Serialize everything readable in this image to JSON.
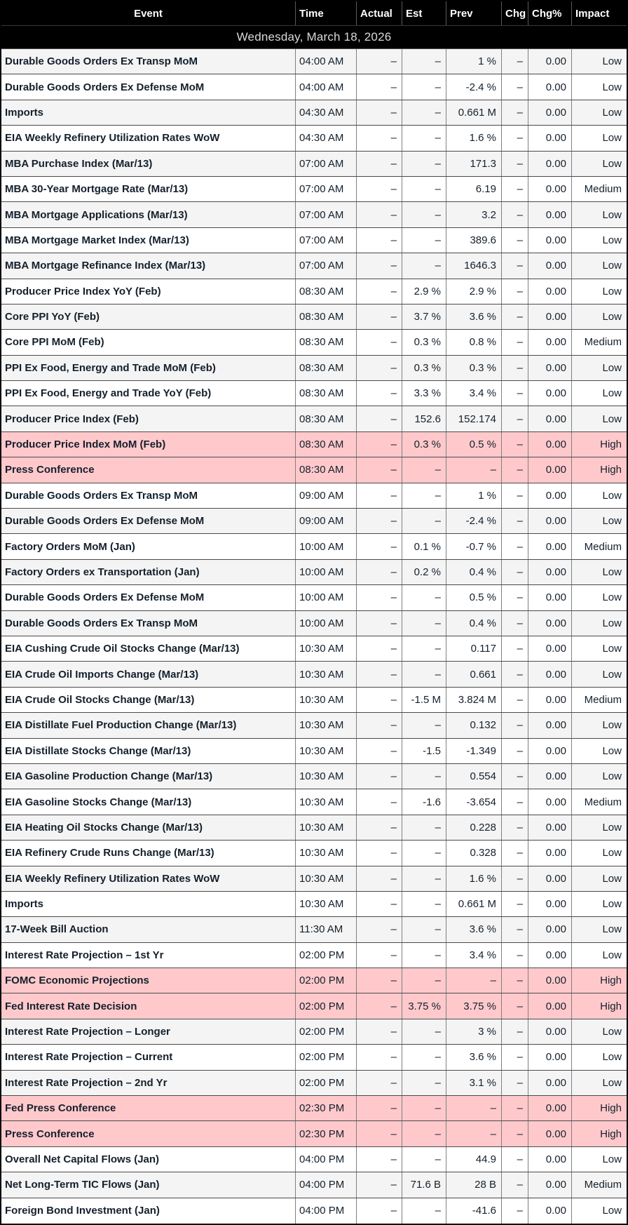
{
  "date_banner": "Wednesday, March 18, 2026",
  "colors": {
    "header_bg": "#000000",
    "header_text": "#ffffff",
    "body_text": "#14202c",
    "zebra_row": "#f4f4f4",
    "high_impact_row": "#ffc9cc",
    "cell_border": "#808080"
  },
  "header": {
    "columns": [
      {
        "label": "Event"
      },
      {
        "label": "Time"
      },
      {
        "label": "Actual"
      },
      {
        "label": "Est"
      },
      {
        "label": "Prev"
      },
      {
        "label": "Chg"
      },
      {
        "label": "Chg%"
      },
      {
        "label": "Impact"
      }
    ]
  },
  "table": {
    "rows": [
      {
        "event": "Durable Goods Orders Ex Transp MoM",
        "time": "04:00 AM",
        "actual": "–",
        "est": "–",
        "prev": "1 %",
        "chg": "–",
        "chgp": "0.00",
        "impact": "Low"
      },
      {
        "event": "Durable Goods Orders Ex Defense MoM",
        "time": "04:00 AM",
        "actual": "–",
        "est": "–",
        "prev": "-2.4 %",
        "chg": "–",
        "chgp": "0.00",
        "impact": "Low"
      },
      {
        "event": "Imports",
        "time": "04:30 AM",
        "actual": "–",
        "est": "–",
        "prev": "0.661 M",
        "chg": "–",
        "chgp": "0.00",
        "impact": "Low"
      },
      {
        "event": "EIA Weekly Refinery Utilization Rates WoW",
        "time": "04:30 AM",
        "actual": "–",
        "est": "–",
        "prev": "1.6 %",
        "chg": "–",
        "chgp": "0.00",
        "impact": "Low"
      },
      {
        "event": "MBA Purchase Index (Mar/13)",
        "time": "07:00 AM",
        "actual": "–",
        "est": "–",
        "prev": "171.3",
        "chg": "–",
        "chgp": "0.00",
        "impact": "Low"
      },
      {
        "event": "MBA 30-Year Mortgage Rate (Mar/13)",
        "time": "07:00 AM",
        "actual": "–",
        "est": "–",
        "prev": "6.19",
        "chg": "–",
        "chgp": "0.00",
        "impact": "Medium"
      },
      {
        "event": "MBA Mortgage Applications (Mar/13)",
        "time": "07:00 AM",
        "actual": "–",
        "est": "–",
        "prev": "3.2",
        "chg": "–",
        "chgp": "0.00",
        "impact": "Low"
      },
      {
        "event": "MBA Mortgage Market Index (Mar/13)",
        "time": "07:00 AM",
        "actual": "–",
        "est": "–",
        "prev": "389.6",
        "chg": "–",
        "chgp": "0.00",
        "impact": "Low"
      },
      {
        "event": "MBA Mortgage Refinance Index (Mar/13)",
        "time": "07:00 AM",
        "actual": "–",
        "est": "–",
        "prev": "1646.3",
        "chg": "–",
        "chgp": "0.00",
        "impact": "Low"
      },
      {
        "event": "Producer Price Index YoY (Feb)",
        "time": "08:30 AM",
        "actual": "–",
        "est": "2.9 %",
        "prev": "2.9 %",
        "chg": "–",
        "chgp": "0.00",
        "impact": "Low"
      },
      {
        "event": "Core PPI YoY (Feb)",
        "time": "08:30 AM",
        "actual": "–",
        "est": "3.7 %",
        "prev": "3.6 %",
        "chg": "–",
        "chgp": "0.00",
        "impact": "Low"
      },
      {
        "event": "Core PPI MoM (Feb)",
        "time": "08:30 AM",
        "actual": "–",
        "est": "0.3 %",
        "prev": "0.8 %",
        "chg": "–",
        "chgp": "0.00",
        "impact": "Medium"
      },
      {
        "event": "PPI Ex Food, Energy and Trade MoM (Feb)",
        "time": "08:30 AM",
        "actual": "–",
        "est": "0.3 %",
        "prev": "0.3 %",
        "chg": "–",
        "chgp": "0.00",
        "impact": "Low"
      },
      {
        "event": "PPI Ex Food, Energy and Trade YoY (Feb)",
        "time": "08:30 AM",
        "actual": "–",
        "est": "3.3 %",
        "prev": "3.4 %",
        "chg": "–",
        "chgp": "0.00",
        "impact": "Low"
      },
      {
        "event": "Producer Price Index (Feb)",
        "time": "08:30 AM",
        "actual": "–",
        "est": "152.6",
        "prev": "152.174",
        "chg": "–",
        "chgp": "0.00",
        "impact": "Low"
      },
      {
        "event": "Producer Price Index MoM (Feb)",
        "time": "08:30 AM",
        "actual": "–",
        "est": "0.3 %",
        "prev": "0.5 %",
        "chg": "–",
        "chgp": "0.00",
        "impact": "High"
      },
      {
        "event": "Press Conference",
        "time": "08:30 AM",
        "actual": "–",
        "est": "–",
        "prev": "–",
        "chg": "–",
        "chgp": "0.00",
        "impact": "High"
      },
      {
        "event": "Durable Goods Orders Ex Transp MoM",
        "time": "09:00 AM",
        "actual": "–",
        "est": "–",
        "prev": "1 %",
        "chg": "–",
        "chgp": "0.00",
        "impact": "Low"
      },
      {
        "event": "Durable Goods Orders Ex Defense MoM",
        "time": "09:00 AM",
        "actual": "–",
        "est": "–",
        "prev": "-2.4 %",
        "chg": "–",
        "chgp": "0.00",
        "impact": "Low"
      },
      {
        "event": "Factory Orders MoM (Jan)",
        "time": "10:00 AM",
        "actual": "–",
        "est": "0.1 %",
        "prev": "-0.7 %",
        "chg": "–",
        "chgp": "0.00",
        "impact": "Medium"
      },
      {
        "event": "Factory Orders ex Transportation (Jan)",
        "time": "10:00 AM",
        "actual": "–",
        "est": "0.2 %",
        "prev": "0.4 %",
        "chg": "–",
        "chgp": "0.00",
        "impact": "Low"
      },
      {
        "event": "Durable Goods Orders Ex Defense MoM",
        "time": "10:00 AM",
        "actual": "–",
        "est": "–",
        "prev": "0.5 %",
        "chg": "–",
        "chgp": "0.00",
        "impact": "Low"
      },
      {
        "event": "Durable Goods Orders Ex Transp MoM",
        "time": "10:00 AM",
        "actual": "–",
        "est": "–",
        "prev": "0.4 %",
        "chg": "–",
        "chgp": "0.00",
        "impact": "Low"
      },
      {
        "event": "EIA Cushing Crude Oil Stocks Change (Mar/13)",
        "time": "10:30 AM",
        "actual": "–",
        "est": "–",
        "prev": "0.117",
        "chg": "–",
        "chgp": "0.00",
        "impact": "Low"
      },
      {
        "event": "EIA Crude Oil Imports Change (Mar/13)",
        "time": "10:30 AM",
        "actual": "–",
        "est": "–",
        "prev": "0.661",
        "chg": "–",
        "chgp": "0.00",
        "impact": "Low"
      },
      {
        "event": "EIA Crude Oil Stocks Change (Mar/13)",
        "time": "10:30 AM",
        "actual": "–",
        "est": "-1.5 M",
        "prev": "3.824 M",
        "chg": "–",
        "chgp": "0.00",
        "impact": "Medium"
      },
      {
        "event": "EIA Distillate Fuel Production Change (Mar/13)",
        "time": "10:30 AM",
        "actual": "–",
        "est": "–",
        "prev": "0.132",
        "chg": "–",
        "chgp": "0.00",
        "impact": "Low"
      },
      {
        "event": "EIA Distillate Stocks Change (Mar/13)",
        "time": "10:30 AM",
        "actual": "–",
        "est": "-1.5",
        "prev": "-1.349",
        "chg": "–",
        "chgp": "0.00",
        "impact": "Low"
      },
      {
        "event": "EIA Gasoline Production Change (Mar/13)",
        "time": "10:30 AM",
        "actual": "–",
        "est": "–",
        "prev": "0.554",
        "chg": "–",
        "chgp": "0.00",
        "impact": "Low"
      },
      {
        "event": "EIA Gasoline Stocks Change (Mar/13)",
        "time": "10:30 AM",
        "actual": "–",
        "est": "-1.6",
        "prev": "-3.654",
        "chg": "–",
        "chgp": "0.00",
        "impact": "Medium"
      },
      {
        "event": "EIA Heating Oil Stocks Change (Mar/13)",
        "time": "10:30 AM",
        "actual": "–",
        "est": "–",
        "prev": "0.228",
        "chg": "–",
        "chgp": "0.00",
        "impact": "Low"
      },
      {
        "event": "EIA Refinery Crude Runs Change (Mar/13)",
        "time": "10:30 AM",
        "actual": "–",
        "est": "–",
        "prev": "0.328",
        "chg": "–",
        "chgp": "0.00",
        "impact": "Low"
      },
      {
        "event": "EIA Weekly Refinery Utilization Rates WoW",
        "time": "10:30 AM",
        "actual": "–",
        "est": "–",
        "prev": "1.6 %",
        "chg": "–",
        "chgp": "0.00",
        "impact": "Low"
      },
      {
        "event": "Imports",
        "time": "10:30 AM",
        "actual": "–",
        "est": "–",
        "prev": "0.661 M",
        "chg": "–",
        "chgp": "0.00",
        "impact": "Low"
      },
      {
        "event": "17-Week Bill Auction",
        "time": "11:30 AM",
        "actual": "–",
        "est": "–",
        "prev": "3.6 %",
        "chg": "–",
        "chgp": "0.00",
        "impact": "Low"
      },
      {
        "event": "Interest Rate Projection – 1st Yr",
        "time": "02:00 PM",
        "actual": "–",
        "est": "–",
        "prev": "3.4 %",
        "chg": "–",
        "chgp": "0.00",
        "impact": "Low"
      },
      {
        "event": "FOMC Economic Projections",
        "time": "02:00 PM",
        "actual": "–",
        "est": "–",
        "prev": "–",
        "chg": "–",
        "chgp": "0.00",
        "impact": "High"
      },
      {
        "event": "Fed Interest Rate Decision",
        "time": "02:00 PM",
        "actual": "–",
        "est": "3.75 %",
        "prev": "3.75 %",
        "chg": "–",
        "chgp": "0.00",
        "impact": "High"
      },
      {
        "event": "Interest Rate Projection – Longer",
        "time": "02:00 PM",
        "actual": "–",
        "est": "–",
        "prev": "3 %",
        "chg": "–",
        "chgp": "0.00",
        "impact": "Low"
      },
      {
        "event": "Interest Rate Projection – Current",
        "time": "02:00 PM",
        "actual": "–",
        "est": "–",
        "prev": "3.6 %",
        "chg": "–",
        "chgp": "0.00",
        "impact": "Low"
      },
      {
        "event": "Interest Rate Projection – 2nd Yr",
        "time": "02:00 PM",
        "actual": "–",
        "est": "–",
        "prev": "3.1 %",
        "chg": "–",
        "chgp": "0.00",
        "impact": "Low"
      },
      {
        "event": "Fed Press Conference",
        "time": "02:30 PM",
        "actual": "–",
        "est": "–",
        "prev": "–",
        "chg": "–",
        "chgp": "0.00",
        "impact": "High"
      },
      {
        "event": "Press Conference",
        "time": "02:30 PM",
        "actual": "–",
        "est": "–",
        "prev": "–",
        "chg": "–",
        "chgp": "0.00",
        "impact": "High"
      },
      {
        "event": "Overall Net Capital Flows (Jan)",
        "time": "04:00 PM",
        "actual": "–",
        "est": "–",
        "prev": "44.9",
        "chg": "–",
        "chgp": "0.00",
        "impact": "Low"
      },
      {
        "event": "Net Long-Term TIC Flows (Jan)",
        "time": "04:00 PM",
        "actual": "–",
        "est": "71.6 B",
        "prev": "28 B",
        "chg": "–",
        "chgp": "0.00",
        "impact": "Medium"
      },
      {
        "event": "Foreign Bond Investment (Jan)",
        "time": "04:00 PM",
        "actual": "–",
        "est": "–",
        "prev": "-41.6",
        "chg": "–",
        "chgp": "0.00",
        "impact": "Low"
      }
    ]
  }
}
